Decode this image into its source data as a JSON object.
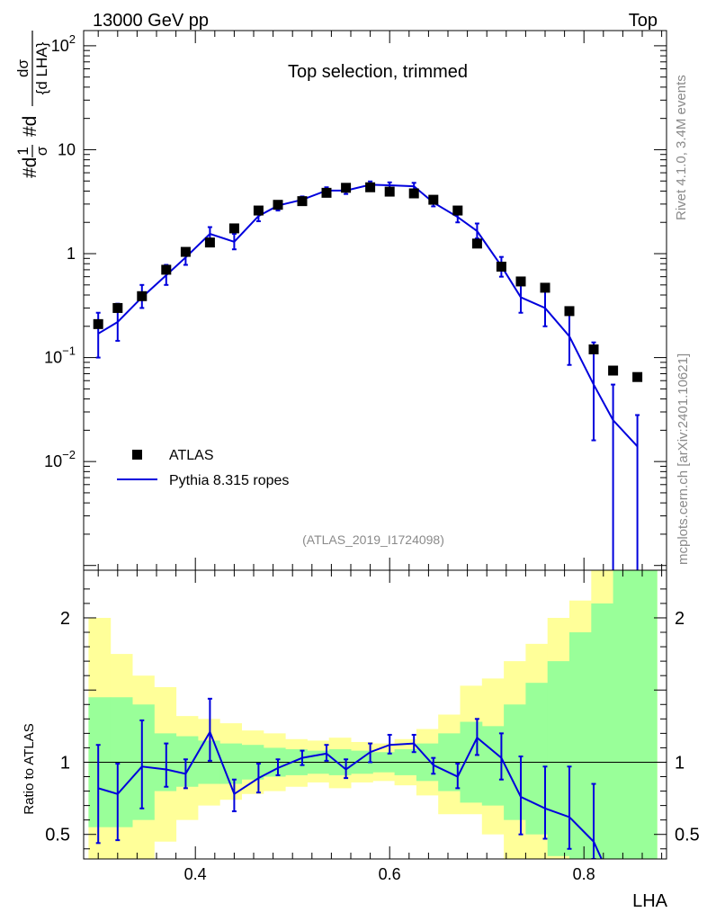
{
  "header": {
    "left": "13000 GeV pp",
    "right": "Top"
  },
  "chart_data": {
    "type": "scatter",
    "title": "Top selection, trimmed",
    "xlabel": "LHA",
    "ylabel_top": "#d1/σ #dσ/{d LHA}",
    "ylabel_parts": {
      "a": "#d",
      "b": "1",
      "c": "σ",
      "d": "#d",
      "e": "dσ",
      "f": "{d LHA}"
    },
    "ylabel_ratio": "Ratio to ATLAS",
    "analysis_tag": "(ATLAS_2019_I1724098)",
    "side_labels": {
      "rivet": "Rivet 4.1.0,  3.4M events",
      "site": "mcplots.cern.ch [arXiv:2401.10621]"
    },
    "legend": {
      "data": "ATLAS",
      "mc": "Pythia 8.315 ropes"
    },
    "colors": {
      "data": "#000000",
      "mc": "#0000dd",
      "band_inner": "#99ff99",
      "band_outer": "#ffff99"
    },
    "xlim": [
      0.285,
      0.885
    ],
    "ylim_top": [
      0.0009,
      140
    ],
    "ylim_ratio": [
      0.33,
      2.33
    ],
    "x_ticks": [
      {
        "v": 0.4,
        "label": "0.4"
      },
      {
        "v": 0.6,
        "label": "0.6"
      },
      {
        "v": 0.8,
        "label": "0.8"
      }
    ],
    "y_ticks_top": [
      {
        "v": 0.01,
        "base": "10",
        "exp": "−2"
      },
      {
        "v": 0.1,
        "base": "10",
        "exp": "−1"
      },
      {
        "v": 1,
        "base": "1",
        "exp": ""
      },
      {
        "v": 10,
        "base": "10",
        "exp": ""
      },
      {
        "v": 100,
        "base": "10",
        "exp": "2"
      }
    ],
    "y_ticks_ratio": [
      {
        "v": 0.5,
        "label": "0.5"
      },
      {
        "v": 1,
        "label": "1"
      },
      {
        "v": 2,
        "label": "2"
      }
    ],
    "bin_edges": [
      0.29,
      0.3125,
      0.335,
      0.3575,
      0.38,
      0.4025,
      0.425,
      0.4475,
      0.47,
      0.4925,
      0.515,
      0.5375,
      0.56,
      0.5825,
      0.605,
      0.6275,
      0.65,
      0.6725,
      0.695,
      0.7175,
      0.74,
      0.7625,
      0.785,
      0.8075,
      0.83,
      0.8525,
      0.875
    ],
    "data_points": {
      "x": [
        0.3,
        0.32,
        0.345,
        0.37,
        0.39,
        0.415,
        0.44,
        0.465,
        0.485,
        0.51,
        0.535,
        0.555,
        0.58,
        0.6,
        0.625,
        0.645,
        0.67,
        0.69,
        0.715,
        0.735,
        0.76,
        0.785,
        0.81,
        0.83,
        0.855
      ],
      "y": [
        0.21,
        0.3,
        0.39,
        0.7,
        1.04,
        1.28,
        1.75,
        2.6,
        2.95,
        3.2,
        3.85,
        4.3,
        4.35,
        3.95,
        3.8,
        3.3,
        2.6,
        1.25,
        0.75,
        0.54,
        0.47,
        0.28,
        0.12,
        0.075,
        0.065
      ]
    },
    "mc_curve": {
      "x": [
        0.3,
        0.32,
        0.345,
        0.37,
        0.39,
        0.415,
        0.44,
        0.465,
        0.485,
        0.51,
        0.535,
        0.555,
        0.58,
        0.6,
        0.625,
        0.645,
        0.67,
        0.69,
        0.715,
        0.735,
        0.76,
        0.785,
        0.81,
        0.83,
        0.855
      ],
      "y": [
        0.17,
        0.22,
        0.38,
        0.62,
        0.92,
        1.55,
        1.3,
        2.3,
        2.9,
        3.3,
        4.05,
        4.05,
        4.6,
        4.55,
        4.45,
        3.1,
        2.25,
        1.65,
        0.76,
        0.38,
        0.3,
        0.16,
        0.055,
        0.025,
        0.014
      ],
      "err_lo": [
        0.1,
        0.145,
        0.3,
        0.5,
        0.78,
        1.3,
        1.1,
        2.05,
        2.6,
        3.05,
        3.75,
        3.75,
        4.3,
        4.3,
        4.15,
        2.85,
        2.0,
        1.4,
        0.6,
        0.27,
        0.2,
        0.085,
        0.016,
        0.0009,
        0.0009
      ],
      "err_hi": [
        0.27,
        0.33,
        0.5,
        0.78,
        1.1,
        1.8,
        1.55,
        2.6,
        3.2,
        3.55,
        4.35,
        4.4,
        4.95,
        4.85,
        4.8,
        3.4,
        2.5,
        1.95,
        0.93,
        0.52,
        0.44,
        0.27,
        0.14,
        0.055,
        0.028
      ]
    },
    "ratio_curve": {
      "x": [
        0.3,
        0.32,
        0.345,
        0.37,
        0.39,
        0.415,
        0.44,
        0.465,
        0.485,
        0.51,
        0.535,
        0.555,
        0.58,
        0.6,
        0.625,
        0.645,
        0.67,
        0.69,
        0.715,
        0.735,
        0.76,
        0.785,
        0.81
      ],
      "y": [
        0.82,
        0.78,
        0.97,
        0.95,
        0.92,
        1.21,
        0.78,
        0.89,
        0.96,
        1.03,
        1.06,
        0.95,
        1.07,
        1.12,
        1.13,
        0.98,
        0.9,
        1.17,
        1.03,
        0.76,
        0.68,
        0.62,
        0.45
      ],
      "err_lo": [
        0.44,
        0.46,
        0.68,
        0.83,
        0.82,
        1.01,
        0.66,
        0.79,
        0.91,
        0.98,
        1.01,
        0.89,
        1.0,
        1.06,
        1.07,
        0.92,
        0.82,
        1.05,
        0.88,
        0.5,
        0.47,
        0.4,
        0.2
      ],
      "err_hi": [
        1.12,
        0.99,
        1.29,
        1.13,
        1.02,
        1.44,
        0.88,
        0.99,
        1.02,
        1.08,
        1.12,
        1.02,
        1.13,
        1.19,
        1.19,
        1.03,
        0.99,
        1.3,
        1.2,
        1.04,
        0.97,
        0.97,
        0.85
      ]
    },
    "ratio_band_inner": {
      "lo": [
        0.55,
        0.55,
        0.6,
        0.8,
        0.83,
        0.85,
        0.85,
        0.88,
        0.9,
        0.91,
        0.92,
        0.91,
        0.92,
        0.93,
        0.91,
        0.87,
        0.8,
        0.72,
        0.7,
        0.6,
        0.5,
        0.35,
        0.33,
        0.33,
        0.33,
        0.33
      ],
      "hi": [
        1.45,
        1.45,
        1.4,
        1.2,
        1.18,
        1.15,
        1.13,
        1.12,
        1.1,
        1.09,
        1.08,
        1.09,
        1.08,
        1.07,
        1.09,
        1.13,
        1.2,
        1.28,
        1.25,
        1.4,
        1.55,
        1.7,
        1.9,
        2.1,
        2.33,
        2.33
      ]
    },
    "ratio_band_outer": {
      "lo": [
        0.33,
        0.33,
        0.33,
        0.45,
        0.6,
        0.7,
        0.74,
        0.78,
        0.8,
        0.83,
        0.86,
        0.82,
        0.86,
        0.87,
        0.84,
        0.77,
        0.64,
        0.64,
        0.5,
        0.33,
        0.33,
        0.33,
        0.33,
        0.33,
        0.33,
        0.33
      ],
      "hi": [
        2.0,
        1.75,
        1.6,
        1.52,
        1.32,
        1.3,
        1.27,
        1.22,
        1.2,
        1.16,
        1.15,
        1.17,
        1.14,
        1.13,
        1.16,
        1.23,
        1.33,
        1.53,
        1.58,
        1.7,
        1.82,
        2.0,
        2.12,
        2.33,
        2.33,
        2.33
      ]
    }
  }
}
